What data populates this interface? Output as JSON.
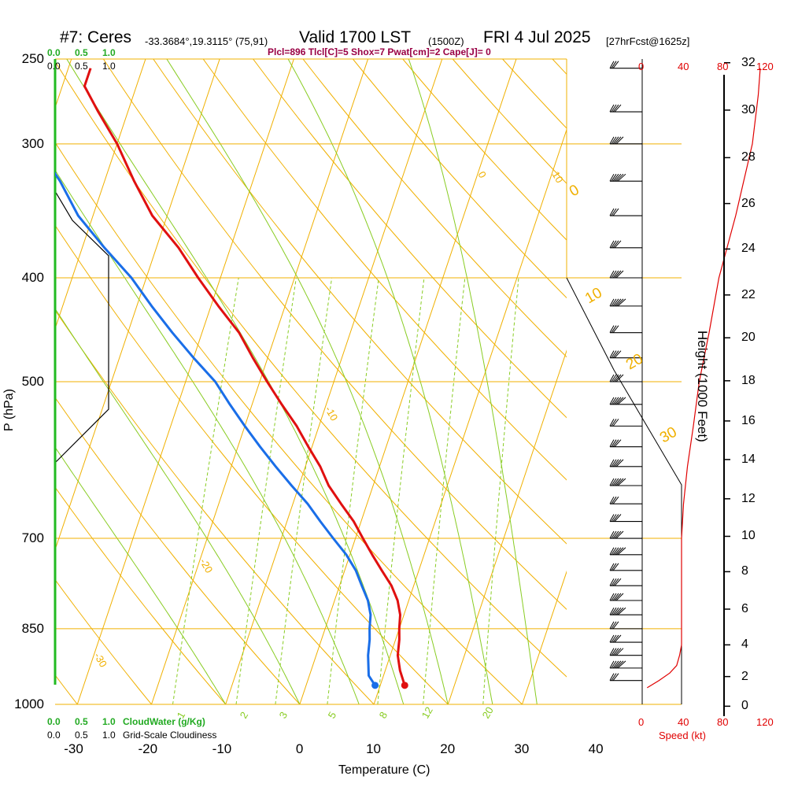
{
  "header": {
    "station": "#7: Ceres",
    "location": "-33.3684°,19.3115° (75,91)",
    "valid": "Valid 1700 LST",
    "zulu": "(1500Z)",
    "date": "FRI 4 Jul 2025",
    "forecast": "[27hrFcst@1625z]"
  },
  "indices_text": "Plcl=896 Tlcl[C]=5 Shox=7 Pwat[cm]=2 Cape[J]= 0",
  "chart_data": {
    "type": "line",
    "xlabel": "Temperature (C)",
    "ylabel": "P (hPa)",
    "right_ylabel": "Height (1000 Feet)",
    "xlim": [
      -33,
      36
    ],
    "ylim_hpa": [
      1000,
      250
    ],
    "x_ticks": [
      -30,
      -20,
      -10,
      0,
      10,
      20,
      30,
      40
    ],
    "pressure_ticks": [
      250,
      300,
      400,
      500,
      700,
      850,
      1000
    ],
    "height_ticks": [
      0,
      2,
      4,
      6,
      8,
      10,
      12,
      14,
      16,
      18,
      20,
      22,
      24,
      26,
      28,
      30,
      32
    ],
    "height_ticks_hpa": [
      1004,
      942,
      880,
      815,
      752,
      697,
      643,
      591,
      544,
      499,
      455,
      415,
      376,
      341,
      309,
      279,
      252
    ],
    "skew_c_per_decade": 48.5,
    "isotherm_labels": [
      {
        "t": 30,
        "text": "30",
        "p": 320
      },
      {
        "t": 20,
        "text": "20",
        "p": 320
      },
      {
        "t": 10,
        "text": "10",
        "p": 320
      },
      {
        "t": 0,
        "text": "0",
        "p": 320
      },
      {
        "t": -10,
        "text": "-10",
        "p": 530
      },
      {
        "t": -20,
        "text": "-20",
        "p": 735
      },
      {
        "t": -30,
        "text": "-30",
        "p": 900
      }
    ],
    "theta_labels": [
      {
        "text": "0",
        "p": 337
      },
      {
        "text": "10",
        "p": 435
      },
      {
        "text": "20",
        "p": 505
      },
      {
        "text": "30",
        "p": 580
      }
    ],
    "mixing_ratio_labels": [
      "1",
      "2",
      "3",
      "5",
      "8",
      "12",
      "20"
    ],
    "temperature": {
      "name": "Temperature",
      "color": "#e01010",
      "points": [
        [
          13.3,
          960
        ],
        [
          12,
          930
        ],
        [
          11,
          900
        ],
        [
          10.5,
          870
        ],
        [
          10,
          850
        ],
        [
          9.5,
          825
        ],
        [
          8.5,
          800
        ],
        [
          7,
          775
        ],
        [
          5,
          750
        ],
        [
          3,
          725
        ],
        [
          1,
          700
        ],
        [
          -1,
          675
        ],
        [
          -3.5,
          650
        ],
        [
          -6,
          625
        ],
        [
          -8,
          600
        ],
        [
          -10.5,
          575
        ],
        [
          -13,
          550
        ],
        [
          -16,
          525
        ],
        [
          -19,
          500
        ],
        [
          -22,
          475
        ],
        [
          -25,
          450
        ],
        [
          -29,
          425
        ],
        [
          -33,
          400
        ],
        [
          -37,
          375
        ],
        [
          -42,
          350
        ],
        [
          -46,
          325
        ],
        [
          -50,
          300
        ],
        [
          -54,
          280
        ],
        [
          -57,
          265
        ],
        [
          -57,
          255
        ]
      ]
    },
    "dewpoint": {
      "name": "Dewpoint",
      "color": "#1a6ee8",
      "points": [
        [
          9.3,
          960
        ],
        [
          8,
          940
        ],
        [
          7,
          900
        ],
        [
          6.5,
          870
        ],
        [
          6,
          850
        ],
        [
          5.5,
          825
        ],
        [
          4.5,
          800
        ],
        [
          3,
          775
        ],
        [
          1.5,
          750
        ],
        [
          -0.5,
          725
        ],
        [
          -3,
          700
        ],
        [
          -5.5,
          675
        ],
        [
          -8,
          650
        ],
        [
          -11,
          625
        ],
        [
          -14,
          600
        ],
        [
          -17,
          575
        ],
        [
          -20,
          550
        ],
        [
          -23,
          525
        ],
        [
          -26,
          500
        ],
        [
          -30,
          475
        ],
        [
          -34,
          450
        ],
        [
          -38,
          425
        ],
        [
          -42,
          400
        ],
        [
          -47,
          375
        ],
        [
          -52,
          350
        ],
        [
          -56,
          325
        ],
        [
          -61,
          300
        ],
        [
          -65,
          280
        ],
        [
          -68,
          265
        ],
        [
          -70,
          255
        ]
      ]
    },
    "wind_profile": {
      "unit": "kt",
      "speed_ticks": [
        0,
        40,
        80,
        120
      ],
      "speed_label": "Speed (kt)",
      "levels": [
        {
          "p": 965,
          "spd": 5
        },
        {
          "p": 950,
          "spd": 17
        },
        {
          "p": 935,
          "spd": 28
        },
        {
          "p": 920,
          "spd": 35
        },
        {
          "p": 900,
          "spd": 38
        },
        {
          "p": 880,
          "spd": 40
        },
        {
          "p": 850,
          "spd": 40
        },
        {
          "p": 800,
          "spd": 40
        },
        {
          "p": 750,
          "spd": 40
        },
        {
          "p": 700,
          "spd": 40
        },
        {
          "p": 650,
          "spd": 42
        },
        {
          "p": 600,
          "spd": 46
        },
        {
          "p": 550,
          "spd": 52
        },
        {
          "p": 500,
          "spd": 58
        },
        {
          "p": 450,
          "spd": 68
        },
        {
          "p": 400,
          "spd": 78
        },
        {
          "p": 350,
          "spd": 95
        },
        {
          "p": 300,
          "spd": 112
        },
        {
          "p": 270,
          "spd": 118
        },
        {
          "p": 255,
          "spd": 120
        }
      ]
    },
    "cloud_scales": {
      "cloud_water_ticks": [
        "0.0",
        "0.5",
        "1.0"
      ],
      "cloud_water_label": "CloudWater (g/Kg)",
      "cloudiness_ticks": [
        "0.0",
        "0.5",
        "1.0"
      ],
      "cloudiness_label": "Grid-Scale Cloudiness"
    }
  },
  "colors": {
    "isobar": "#f0b000",
    "isotherm": "#f0b000",
    "dry_adiabat": "#f0b000",
    "moist_adiabat": "#88cc22",
    "mixing_ratio": "#88cc22",
    "cloud_water": "#22bb22",
    "speed": "#e00000"
  }
}
